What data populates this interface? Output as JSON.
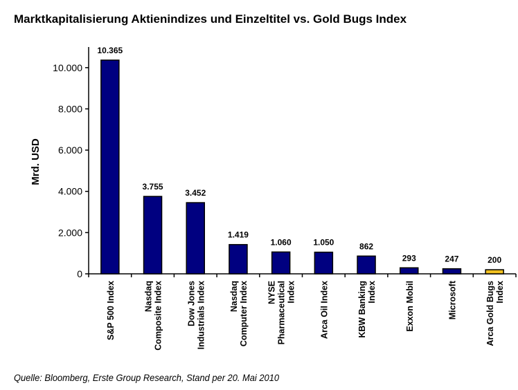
{
  "chart_data": {
    "type": "bar",
    "title": "Marktkapitalisierung Aktienindizes und Einzeltitel vs. Gold Bugs Index",
    "ylabel": "Mrd. USD",
    "xlabel": "",
    "ylim": [
      0,
      11000
    ],
    "yticks": [
      0,
      2000,
      4000,
      6000,
      8000,
      10000
    ],
    "ytick_labels": [
      "0",
      "2.000",
      "4.000",
      "6.000",
      "8.000",
      "10.000"
    ],
    "grid": false,
    "categories": [
      [
        "S&P 500 Index"
      ],
      [
        "Nasdaq",
        "Composite Index"
      ],
      [
        "Dow Jones",
        "Industrials Index"
      ],
      [
        "Nasdaq",
        "Computer Index"
      ],
      [
        "NYSE",
        "Pharmaceutical",
        "Index"
      ],
      [
        "Arca Oil Index"
      ],
      [
        "KBW Banking",
        "Index"
      ],
      [
        "Exxon Mobil"
      ],
      [
        "Microsoft"
      ],
      [
        "Arca Gold Bugs",
        "Index"
      ]
    ],
    "values": [
      10365,
      3755,
      3452,
      1419,
      1060,
      1050,
      862,
      293,
      247,
      200
    ],
    "data_labels": [
      "10.365",
      "3.755",
      "3.452",
      "1.419",
      "1.060",
      "1.050",
      "862",
      "293",
      "247",
      "200"
    ],
    "colors": [
      "#000080",
      "#000080",
      "#000080",
      "#000080",
      "#000080",
      "#000080",
      "#000080",
      "#000080",
      "#000080",
      "#F0C020"
    ]
  },
  "source": "Quelle: Bloomberg, Erste Group Research, Stand per 20. Mai 2010"
}
